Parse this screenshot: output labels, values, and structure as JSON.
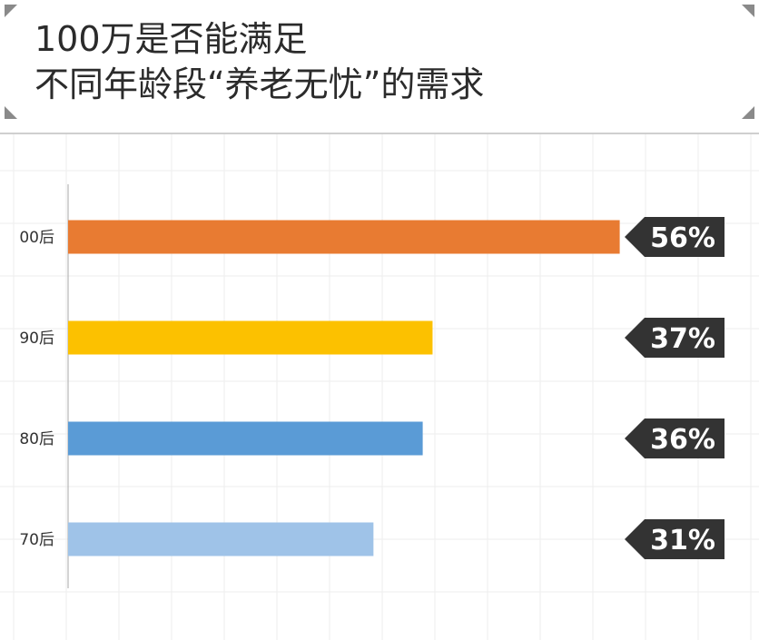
{
  "title_lines": [
    "100万是否能满足",
    "不同年龄段“养老无忧”的需求"
  ],
  "chart_data": {
    "type": "bar",
    "orientation": "horizontal",
    "title": "100万是否能满足不同年龄段“养老无忧”的需求",
    "categories": [
      "00后",
      "90后",
      "80后",
      "70后"
    ],
    "values": [
      56,
      37,
      36,
      31
    ],
    "value_labels": [
      "56%",
      "37%",
      "36%",
      "31%"
    ],
    "colors": [
      "#e87b32",
      "#fcc100",
      "#5a9bd6",
      "#9fc3e8"
    ],
    "label_tag_color": "#333333",
    "xlim": [
      0,
      100
    ],
    "grid": true
  }
}
